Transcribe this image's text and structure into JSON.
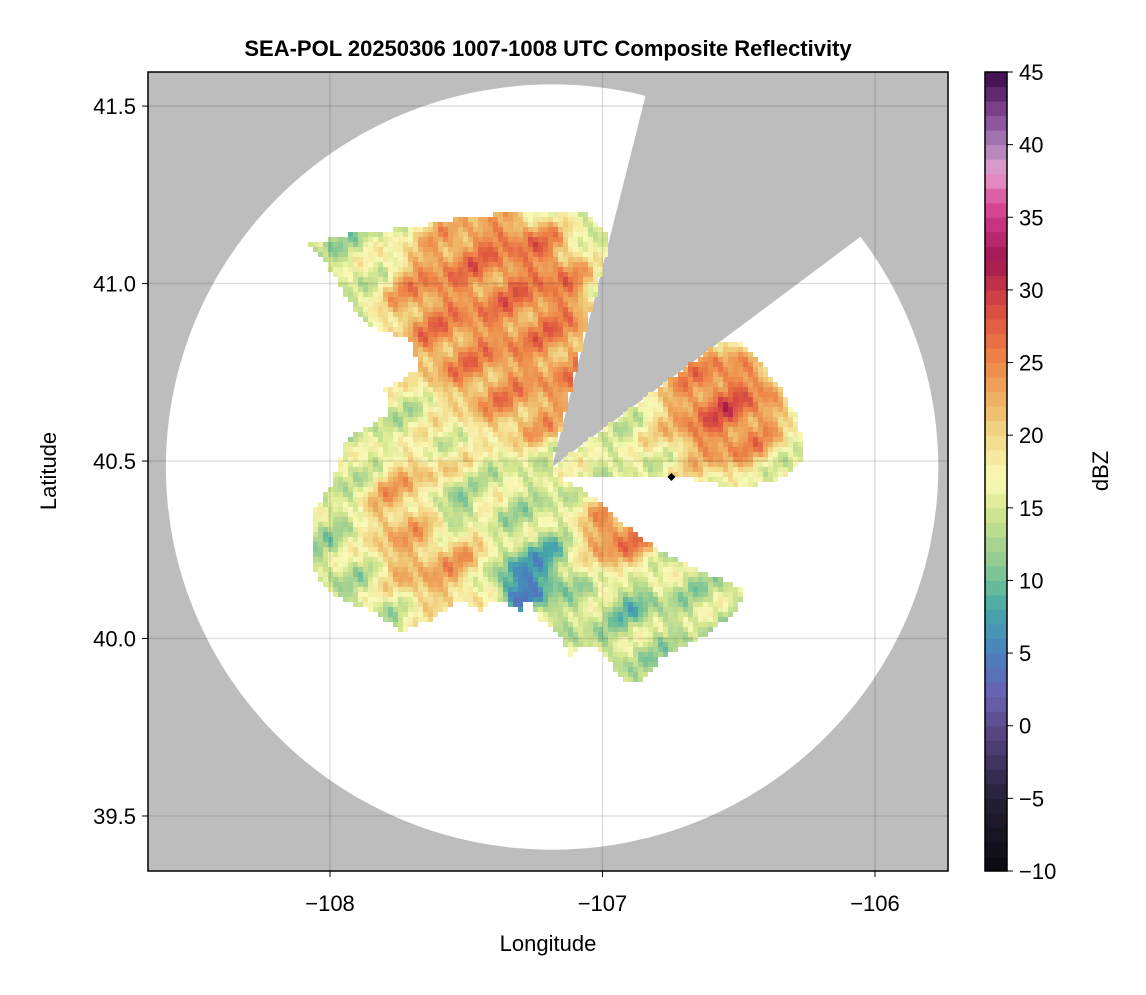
{
  "chart_data": {
    "type": "heatmap",
    "title": "SEA-POL 20250306 1007-1008 UTC Composite Reflectivity",
    "xlabel": "Longitude",
    "ylabel": "Latitude",
    "xlim": [
      -108.668,
      -105.732
    ],
    "ylim": [
      39.345,
      41.596
    ],
    "xticks": [
      -108,
      -107,
      -106
    ],
    "xtick_labels": [
      "−108",
      "−107",
      "−106"
    ],
    "yticks": [
      39.5,
      40.0,
      40.5,
      41.0,
      41.5
    ],
    "ytick_labels": [
      "39.5",
      "40.0",
      "40.5",
      "41.0",
      "41.5"
    ],
    "grid": true,
    "radar_site": {
      "lon": -107.185,
      "lat": 40.483
    },
    "range_km": 120,
    "blocked_sector_azimuth_deg": [
      14,
      53
    ],
    "marker": {
      "lon": -106.747,
      "lat": 40.455,
      "shape": "diamond"
    },
    "colorbar": {
      "label": "dBZ",
      "range": [
        -10,
        45
      ],
      "ticks": [
        -10,
        -5,
        0,
        5,
        10,
        15,
        20,
        25,
        30,
        35,
        40,
        45
      ],
      "tick_labels": [
        "−10",
        "−5",
        "0",
        "5",
        "10",
        "15",
        "20",
        "25",
        "30",
        "35",
        "40",
        "45"
      ],
      "stops": [
        [
          -10,
          "#0a0a10"
        ],
        [
          -5,
          "#252035"
        ],
        [
          0,
          "#5a4a8a"
        ],
        [
          2,
          "#6a60b0"
        ],
        [
          5,
          "#4a80c0"
        ],
        [
          8,
          "#45a8a8"
        ],
        [
          10,
          "#70c098"
        ],
        [
          12,
          "#a0d090"
        ],
        [
          15,
          "#d8e890"
        ],
        [
          17,
          "#fafab8"
        ],
        [
          20,
          "#f2d888"
        ],
        [
          22,
          "#eeb868"
        ],
        [
          25,
          "#ee8848"
        ],
        [
          28,
          "#e05840"
        ],
        [
          30,
          "#c83848"
        ],
        [
          32,
          "#a01850"
        ],
        [
          35,
          "#d03888"
        ],
        [
          37,
          "#e070b0"
        ],
        [
          38,
          "#e8a0d0"
        ],
        [
          40,
          "#a880b8"
        ],
        [
          42,
          "#884898"
        ],
        [
          45,
          "#3a0a48"
        ]
      ]
    },
    "echo_outline": [
      [
        -108.09,
        41.11
      ],
      [
        -107.93,
        41.14
      ],
      [
        -107.67,
        41.16
      ],
      [
        -107.49,
        41.19
      ],
      [
        -107.3,
        41.2
      ],
      [
        -107.05,
        41.2
      ],
      [
        -107.01,
        41.16
      ],
      [
        -106.64,
        40.83
      ],
      [
        -106.5,
        40.84
      ],
      [
        -106.42,
        40.78
      ],
      [
        -106.37,
        40.73
      ],
      [
        -106.28,
        40.62
      ],
      [
        -106.26,
        40.5
      ],
      [
        -106.35,
        40.45
      ],
      [
        -106.5,
        40.42
      ],
      [
        -106.68,
        40.45
      ],
      [
        -106.93,
        40.45
      ],
      [
        -107.17,
        40.46
      ],
      [
        -107.01,
        40.39
      ],
      [
        -106.86,
        40.28
      ],
      [
        -106.64,
        40.19
      ],
      [
        -106.48,
        40.14
      ],
      [
        -106.5,
        40.08
      ],
      [
        -106.64,
        40.0
      ],
      [
        -106.79,
        39.94
      ],
      [
        -106.86,
        39.88
      ],
      [
        -106.92,
        39.88
      ],
      [
        -107.01,
        39.97
      ],
      [
        -107.08,
        39.97
      ],
      [
        -107.12,
        39.94
      ],
      [
        -107.16,
        40.02
      ],
      [
        -107.23,
        40.05
      ],
      [
        -107.27,
        40.11
      ],
      [
        -107.3,
        40.08
      ],
      [
        -107.38,
        40.11
      ],
      [
        -107.45,
        40.08
      ],
      [
        -107.52,
        40.11
      ],
      [
        -107.63,
        40.05
      ],
      [
        -107.74,
        40.02
      ],
      [
        -107.85,
        40.08
      ],
      [
        -107.96,
        40.11
      ],
      [
        -108.04,
        40.16
      ],
      [
        -108.07,
        40.22
      ],
      [
        -108.07,
        40.36
      ],
      [
        -108.0,
        40.42
      ],
      [
        -107.94,
        40.56
      ],
      [
        -107.85,
        40.6
      ],
      [
        -107.78,
        40.64
      ],
      [
        -107.8,
        40.7
      ],
      [
        -107.67,
        40.76
      ],
      [
        -107.71,
        40.84
      ],
      [
        -107.82,
        40.87
      ],
      [
        -107.89,
        40.9
      ],
      [
        -107.93,
        40.95
      ],
      [
        -108.0,
        41.04
      ],
      [
        -108.06,
        41.09
      ]
    ],
    "echo_base_dbz": 14,
    "echo_cells": [
      {
        "lon": -107.55,
        "lat": 40.93,
        "dbz": 24,
        "size": 0.18
      },
      {
        "lon": -107.3,
        "lat": 41.0,
        "dbz": 26,
        "size": 0.16
      },
      {
        "lon": -107.25,
        "lat": 40.7,
        "dbz": 23,
        "size": 0.14
      },
      {
        "lon": -106.55,
        "lat": 40.65,
        "dbz": 27,
        "size": 0.17
      },
      {
        "lon": -106.95,
        "lat": 40.28,
        "dbz": 26,
        "size": 0.1
      },
      {
        "lon": -107.7,
        "lat": 40.38,
        "dbz": 22,
        "size": 0.12
      },
      {
        "lon": -107.6,
        "lat": 40.2,
        "dbz": 22,
        "size": 0.12
      },
      {
        "lon": -107.55,
        "lat": 40.37,
        "dbz": 3,
        "size": 0.05
      },
      {
        "lon": -107.3,
        "lat": 40.15,
        "dbz": 2,
        "size": 0.05
      },
      {
        "lon": -107.18,
        "lat": 40.22,
        "dbz": 8,
        "size": 0.07
      },
      {
        "lon": -106.9,
        "lat": 40.12,
        "dbz": 8,
        "size": 0.06
      }
    ]
  }
}
